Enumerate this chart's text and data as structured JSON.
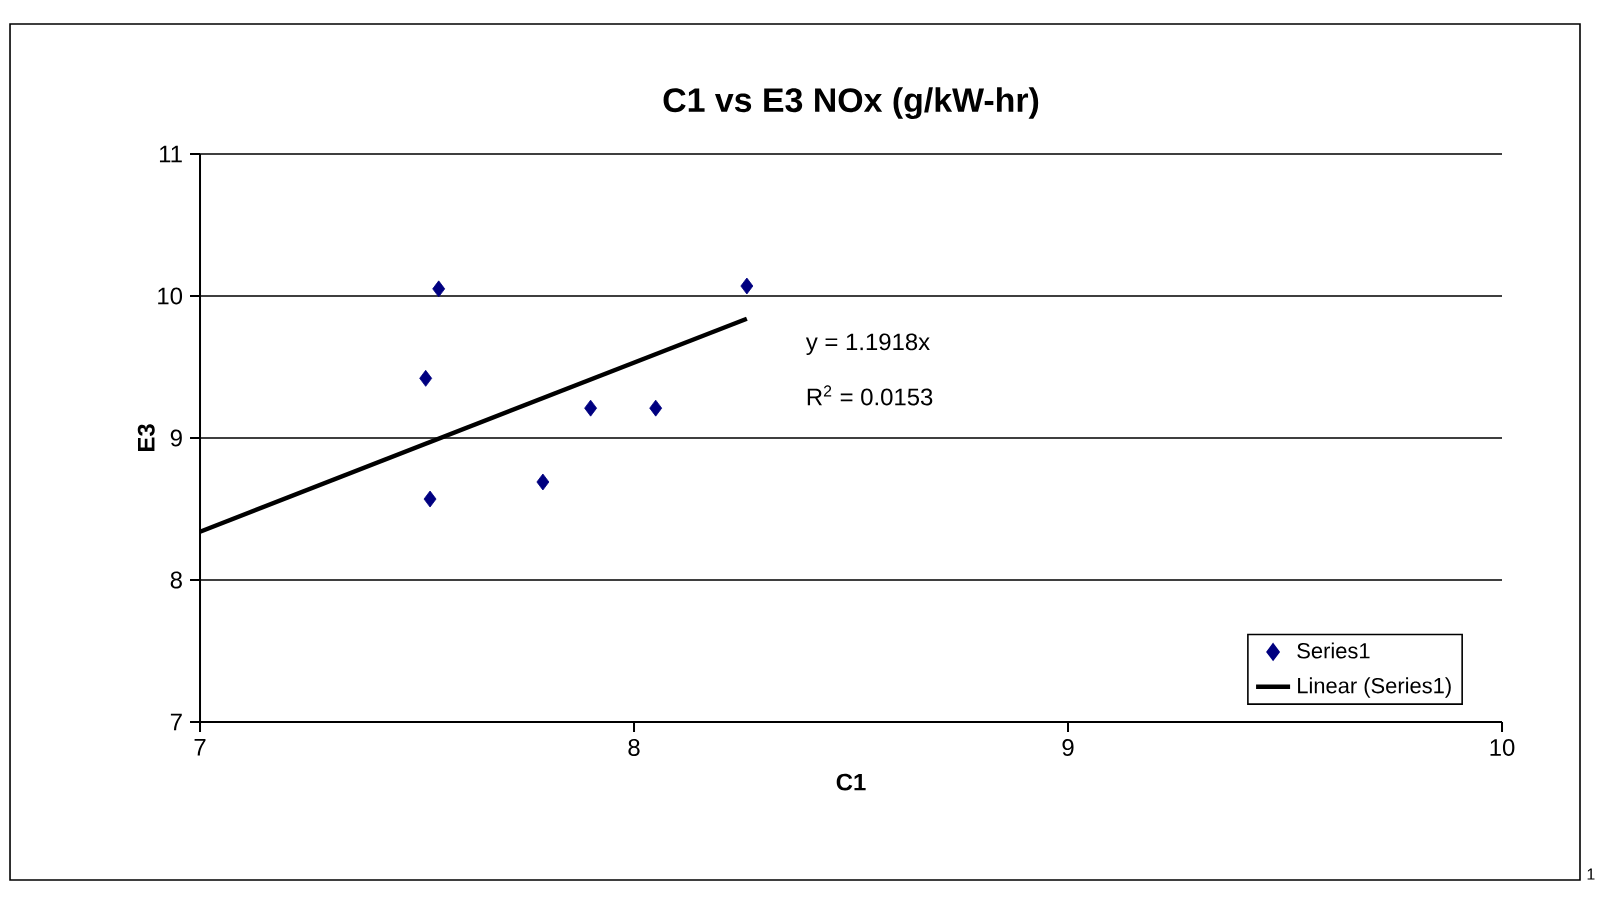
{
  "chart_data": {
    "type": "scatter",
    "title": "C1 vs E3 NOx (g/kW-hr)",
    "xlabel": "C1",
    "ylabel": "E3",
    "xlim": [
      7,
      10
    ],
    "xticks": [
      7,
      8,
      9,
      10
    ],
    "ylim": [
      7,
      11
    ],
    "yticks": [
      7,
      8,
      9,
      10,
      11
    ],
    "grid": "y",
    "legend": "bottom right",
    "series": [
      {
        "name": "Series1",
        "type": "scatter",
        "marker": "diamond",
        "color": "#000080",
        "x": [
          7.55,
          7.52,
          7.53,
          7.79,
          7.9,
          8.05,
          8.26
        ],
        "values": [
          10.05,
          9.42,
          8.57,
          8.69,
          9.21,
          9.21,
          10.07
        ]
      },
      {
        "name": "Linear (Series1)",
        "type": "line",
        "marker": "none",
        "line_style": "solid",
        "color": "#000000",
        "x": [
          7,
          8.26
        ],
        "values": [
          8.34,
          9.84
        ]
      }
    ],
    "annotations": [
      "y = 1.1918x",
      "R$^{2}$ = 0.0153",
      "1"
    ]
  }
}
